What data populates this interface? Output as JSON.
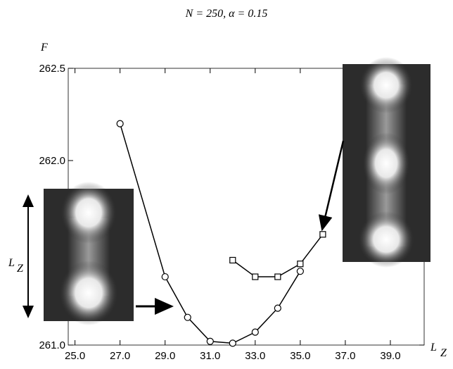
{
  "chart_data": {
    "type": "line",
    "title": "N = 250, α = 0.15",
    "y_label": "F",
    "x_label": "L",
    "x_label_sub": "Z",
    "inset_label": "L",
    "inset_label_sub": "Z",
    "xlim": [
      24.7,
      40.5
    ],
    "ylim": [
      261.0,
      262.5
    ],
    "xticks": [
      {
        "value": 25,
        "label": "25.0"
      },
      {
        "value": 27,
        "label": "27.0"
      },
      {
        "value": 29,
        "label": "29.0"
      },
      {
        "value": 31,
        "label": "31.0"
      },
      {
        "value": 33,
        "label": "33.0"
      },
      {
        "value": 35,
        "label": "35.0"
      },
      {
        "value": 37,
        "label": "37.0"
      },
      {
        "value": 39,
        "label": "39.0"
      }
    ],
    "yticks": [
      {
        "value": 261,
        "label": "261.0"
      },
      {
        "value": 262,
        "label": "262.0"
      },
      262.5
    ],
    "series": [
      {
        "marker": "circle",
        "color": "#000000",
        "x": [
          27,
          29,
          30,
          31,
          32,
          33,
          34,
          35
        ],
        "values": [
          262.2,
          261.37,
          261.15,
          261.02,
          261.01,
          261.07,
          261.2,
          261.4
        ]
      },
      {
        "marker": "square",
        "color": "#000000",
        "x": [
          32,
          33,
          34,
          35,
          36
        ],
        "values": [
          261.46,
          261.37,
          261.37,
          261.44,
          261.6
        ]
      }
    ]
  }
}
